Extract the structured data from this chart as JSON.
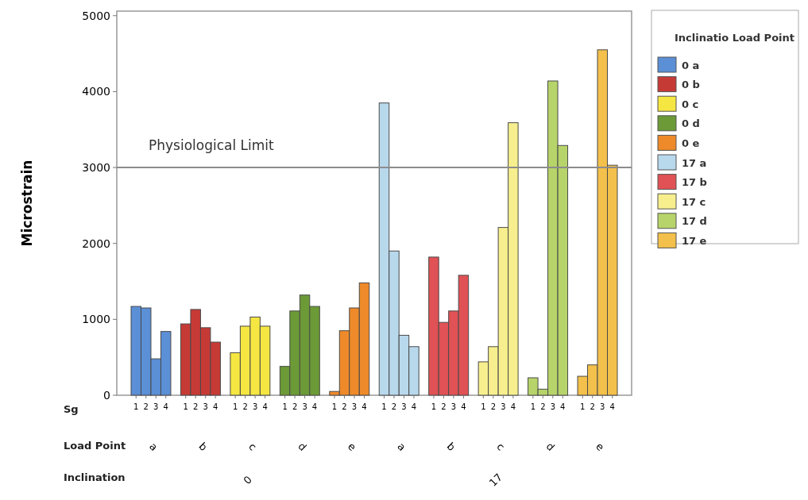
{
  "chart_data": {
    "type": "bar",
    "ylabel": "Microstrain",
    "legend_title": "Inclinatio Load Point",
    "categories": [
      "1",
      "2",
      "3",
      "4",
      null,
      "1",
      "2",
      "3",
      "4",
      null,
      "1",
      "2",
      "3",
      "4",
      null,
      "1",
      "2",
      "3",
      "4",
      null,
      "1",
      "2",
      "3",
      "4",
      null,
      "1",
      "2",
      "3",
      "4",
      null,
      "1",
      "2",
      "3",
      "4",
      null,
      "1",
      "2",
      "3",
      "4",
      null,
      "1",
      "2",
      "3",
      "4",
      null,
      "1",
      "2",
      "3",
      "4"
    ],
    "series": [
      {
        "name": "0 a",
        "color": "#5b8fd6",
        "values": [
          1170,
          1150,
          480,
          840,
          null,
          null,
          null,
          null,
          null,
          null,
          null,
          null,
          null,
          null,
          null,
          null,
          null,
          null,
          null,
          null,
          null,
          null,
          null,
          null,
          null,
          null,
          null,
          null,
          null,
          null,
          null,
          null,
          null,
          null,
          null,
          null,
          null,
          null,
          null,
          null,
          null,
          null,
          null,
          null,
          null,
          null,
          null,
          null,
          null
        ]
      },
      {
        "name": "0 b",
        "color": "#c63a36",
        "values": [
          null,
          null,
          null,
          null,
          null,
          940,
          1130,
          890,
          700,
          null,
          null,
          null,
          null,
          null,
          null,
          null,
          null,
          null,
          null,
          null,
          null,
          null,
          null,
          null,
          null,
          null,
          null,
          null,
          null,
          null,
          null,
          null,
          null,
          null,
          null,
          null,
          null,
          null,
          null,
          null,
          null,
          null,
          null,
          null,
          null,
          null,
          null,
          null,
          null
        ]
      },
      {
        "name": "0 c",
        "color": "#f5e642",
        "values": [
          null,
          null,
          null,
          null,
          null,
          null,
          null,
          null,
          null,
          null,
          560,
          910,
          1030,
          910,
          null,
          null,
          null,
          null,
          null,
          null,
          null,
          null,
          null,
          null,
          null,
          null,
          null,
          null,
          null,
          null,
          null,
          null,
          null,
          null,
          null,
          null,
          null,
          null,
          null,
          null,
          null,
          null,
          null,
          null,
          null,
          null,
          null,
          null,
          null
        ]
      },
      {
        "name": "0 d",
        "color": "#6b9a36",
        "values": [
          null,
          null,
          null,
          null,
          null,
          null,
          null,
          null,
          null,
          null,
          null,
          null,
          null,
          null,
          null,
          380,
          1110,
          1320,
          1170,
          null,
          null,
          null,
          null,
          null,
          null,
          null,
          null,
          null,
          null,
          null,
          null,
          null,
          null,
          null,
          null,
          null,
          null,
          null,
          null,
          null,
          null,
          null,
          null,
          null,
          null,
          null,
          null,
          null,
          null
        ]
      },
      {
        "name": "0 e",
        "color": "#ee8a2a",
        "values": [
          null,
          null,
          null,
          null,
          null,
          null,
          null,
          null,
          null,
          null,
          null,
          null,
          null,
          null,
          null,
          null,
          null,
          null,
          null,
          null,
          50,
          850,
          1150,
          1480,
          null,
          null,
          null,
          null,
          null,
          null,
          null,
          null,
          null,
          null,
          null,
          null,
          null,
          null,
          null,
          null,
          null,
          null,
          null,
          null,
          null,
          null,
          null,
          null,
          null
        ]
      },
      {
        "name": "17 a",
        "color": "#b8d8ec",
        "values": [
          null,
          null,
          null,
          null,
          null,
          null,
          null,
          null,
          null,
          null,
          null,
          null,
          null,
          null,
          null,
          null,
          null,
          null,
          null,
          null,
          null,
          null,
          null,
          null,
          null,
          3850,
          1900,
          790,
          640,
          null,
          null,
          null,
          null,
          null,
          null,
          null,
          null,
          null,
          null,
          null,
          null,
          null,
          null,
          null,
          null,
          null,
          null,
          null,
          null
        ]
      },
      {
        "name": "17 b",
        "color": "#e05255",
        "values": [
          null,
          null,
          null,
          null,
          null,
          null,
          null,
          null,
          null,
          null,
          null,
          null,
          null,
          null,
          null,
          null,
          null,
          null,
          null,
          null,
          null,
          null,
          null,
          null,
          null,
          null,
          null,
          null,
          null,
          null,
          1820,
          960,
          1110,
          1580,
          null,
          null,
          null,
          null,
          null,
          null,
          null,
          null,
          null,
          null,
          null,
          null,
          null,
          null,
          null
        ]
      },
      {
        "name": "17 c",
        "color": "#f7ef8e",
        "values": [
          null,
          null,
          null,
          null,
          null,
          null,
          null,
          null,
          null,
          null,
          null,
          null,
          null,
          null,
          null,
          null,
          null,
          null,
          null,
          null,
          null,
          null,
          null,
          null,
          null,
          null,
          null,
          null,
          null,
          null,
          null,
          null,
          null,
          null,
          null,
          440,
          640,
          2210,
          3590,
          null,
          null,
          null,
          null,
          null,
          null,
          null,
          null,
          null,
          null
        ]
      },
      {
        "name": "17 d",
        "color": "#b7d46a",
        "values": [
          null,
          null,
          null,
          null,
          null,
          null,
          null,
          null,
          null,
          null,
          null,
          null,
          null,
          null,
          null,
          null,
          null,
          null,
          null,
          null,
          null,
          null,
          null,
          null,
          null,
          null,
          null,
          null,
          null,
          null,
          null,
          null,
          null,
          null,
          null,
          null,
          null,
          null,
          null,
          null,
          230,
          80,
          4140,
          3290,
          null,
          null,
          null,
          null,
          null
        ]
      },
      {
        "name": "17 e",
        "color": "#f3c04b",
        "values": [
          null,
          null,
          null,
          null,
          null,
          null,
          null,
          null,
          null,
          null,
          null,
          null,
          null,
          null,
          null,
          null,
          null,
          null,
          null,
          null,
          null,
          null,
          null,
          null,
          null,
          null,
          null,
          null,
          null,
          null,
          null,
          null,
          null,
          null,
          null,
          null,
          null,
          null,
          null,
          null,
          null,
          null,
          null,
          null,
          null,
          250,
          400,
          4550,
          3030
        ]
      }
    ],
    "ylim": [
      0,
      5060
    ],
    "yticks": [
      0,
      1000,
      2000,
      3000,
      4000,
      5000
    ],
    "legend": "right",
    "ref_lines": [
      {
        "axis": "y",
        "value": 3000,
        "label": "Physiological Limit",
        "color": "#8c8c8c"
      }
    ],
    "annotations": [
      "Sg",
      "Load Point",
      "Inclination",
      "a",
      "b",
      "c",
      "d",
      "e",
      "a",
      "b",
      "c",
      "d",
      "e",
      "0",
      "17"
    ]
  }
}
